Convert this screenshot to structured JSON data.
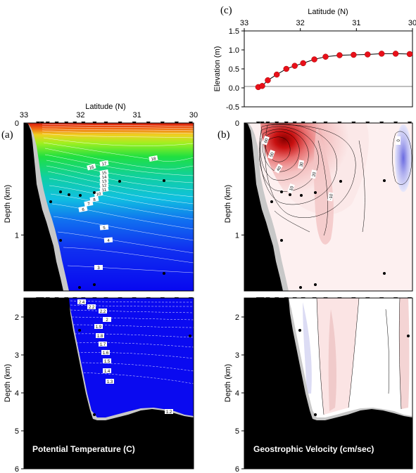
{
  "panel_labels": {
    "a": "(a)",
    "b": "(b)",
    "c": "(c)"
  },
  "box_labels": {
    "temperature": "Potential Temperature (C)",
    "velocity": "Geostrophic Velocity (cm/sec)"
  },
  "colors": {
    "land": "#000000",
    "shelf_gray": "#c8c8c8",
    "warm": "#d0141b",
    "cool": "#0000e6",
    "elevation_point": "#e8101a"
  },
  "chart_data": [
    {
      "type": "line",
      "panel": "c",
      "xlabel": "Latitude (N)",
      "ylabel": "Elevation (m)",
      "xlim": [
        33,
        30
      ],
      "ylim": [
        -0.5,
        1.5
      ],
      "xticks": [
        "33",
        "32",
        "31",
        "30"
      ],
      "yticks": [
        "-0.5",
        "0.0",
        "0.5",
        "1.0",
        "1.5"
      ],
      "x": [
        32.75,
        32.68,
        32.58,
        32.42,
        32.25,
        32.1,
        31.95,
        31.75,
        31.55,
        31.3,
        31.05,
        30.8,
        30.55,
        30.3,
        30.05
      ],
      "values": [
        0.02,
        0.05,
        0.2,
        0.35,
        0.5,
        0.58,
        0.65,
        0.75,
        0.82,
        0.86,
        0.87,
        0.88,
        0.9,
        0.9,
        0.89
      ]
    },
    {
      "type": "heatmap",
      "panel": "a",
      "xlabel": "Latitude (N)",
      "ylabel": "Depth (km)",
      "xlim": [
        33,
        30
      ],
      "ylim_upper": [
        0,
        1.5
      ],
      "ylim_lower": [
        1.5,
        6
      ],
      "xticks": [
        "33",
        "32",
        "31",
        "30"
      ],
      "yticks_upper": [
        "1"
      ],
      "yticks_lower": [
        "2",
        "3",
        "4",
        "5",
        "6"
      ],
      "contour_labels_upper": [
        "18",
        "17",
        "16",
        "15",
        "14",
        "13",
        "12",
        "11",
        "10",
        "8",
        "7",
        "6",
        "5",
        "4",
        "3"
      ],
      "contour_labels_lower": [
        "2.4",
        "2.2",
        "2.2",
        "2",
        "1.9",
        "1.8",
        "1.7",
        "1.6",
        "1.5",
        "1.4",
        "1.3",
        "1.2"
      ]
    },
    {
      "type": "heatmap",
      "panel": "b",
      "ylabel": "Depth (km)",
      "xlim": [
        33,
        30
      ],
      "ylim_upper": [
        0,
        1.5
      ],
      "ylim_lower": [
        1.5,
        6
      ],
      "yticks_upper": [
        "1"
      ],
      "yticks_lower": [
        "2",
        "3",
        "4",
        "5",
        "6"
      ],
      "contour_labels": [
        "60",
        "50",
        "40",
        "30",
        "20",
        "10",
        "0",
        "-10"
      ]
    }
  ]
}
